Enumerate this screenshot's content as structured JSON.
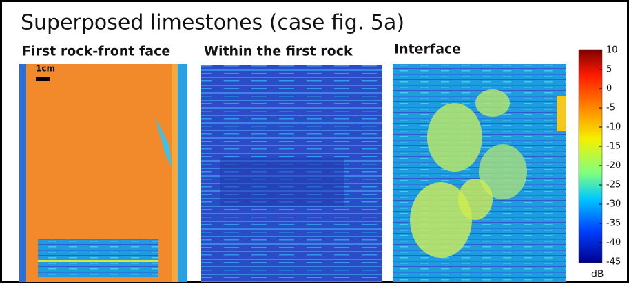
{
  "title": "Superposed limestones (case fig. 5a)",
  "panels": [
    {
      "title": "First rock-front  face",
      "scale_label": "1cm"
    },
    {
      "title": "Within the first rock"
    },
    {
      "title": "Interface"
    }
  ],
  "colorbar": {
    "ticks": [
      10,
      5,
      0,
      -5,
      -10,
      -15,
      -20,
      -25,
      -30,
      -35,
      -40,
      -45
    ],
    "unit": "dB"
  }
}
